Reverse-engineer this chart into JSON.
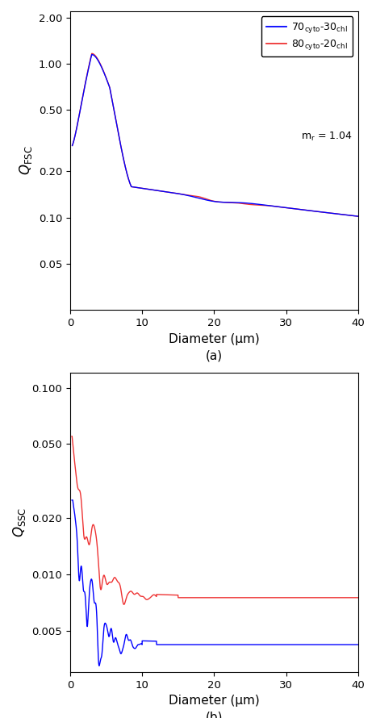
{
  "blue_color": "#0000FF",
  "red_color": "#EE3333",
  "xlabel": "Diameter (μm)",
  "ylabel_top": "$Q_\\mathrm{FSC}$",
  "ylabel_bot": "$Q_\\mathrm{SSC}$",
  "label_a": "(a)",
  "label_b": "(b)",
  "legend_line1": "70$_\\mathrm{cyto}$-30$_\\mathrm{chl}$",
  "legend_line2": "80$_\\mathrm{cyto}$-20$_\\mathrm{chl}$",
  "legend_mr": "m$_\\mathrm{r}$ = 1.04",
  "xticks": [
    0,
    10,
    20,
    30,
    40
  ],
  "fsc_yticks": [
    0.05,
    0.1,
    0.2,
    0.5,
    1.0,
    2.0
  ],
  "fsc_ytick_labels": [
    "0.05",
    "0.10",
    "0.20",
    "0.50",
    "1.00",
    "2.00"
  ],
  "ssc_yticks": [
    0.005,
    0.01,
    0.02,
    0.05,
    0.1
  ],
  "ssc_ytick_labels": [
    "0.005",
    "0.010",
    "0.020",
    "0.050",
    "0.100"
  ],
  "xlim": [
    0,
    40
  ],
  "fsc_ylim": [
    0.025,
    2.2
  ],
  "ssc_ylim": [
    0.003,
    0.12
  ],
  "line_width": 1.0
}
